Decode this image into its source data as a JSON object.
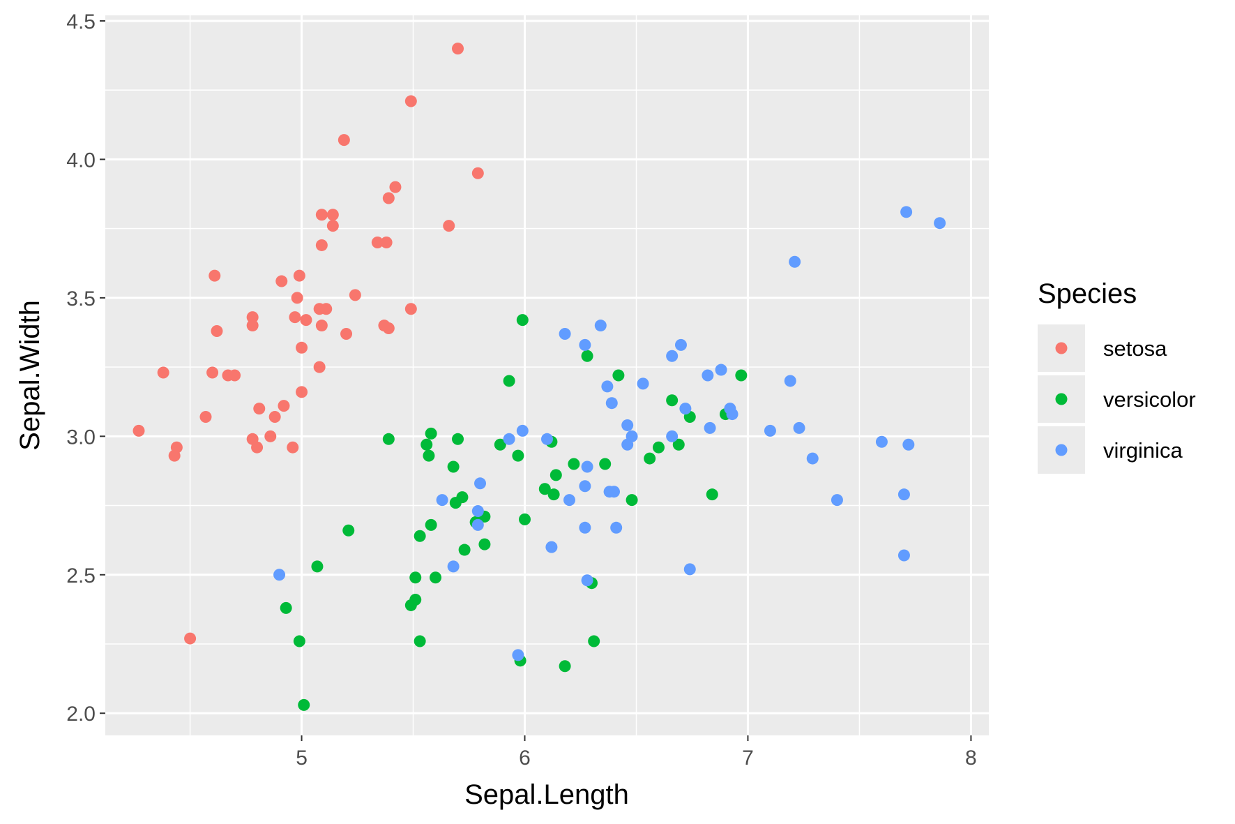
{
  "chart_data": {
    "type": "scatter",
    "title": "",
    "xlabel": "Sepal.Length",
    "ylabel": "Sepal.Width",
    "xlim": [
      4.12,
      8.08
    ],
    "ylim": [
      1.92,
      4.52
    ],
    "x_ticks": [
      5,
      6,
      7,
      8
    ],
    "x_tick_labels": [
      "5",
      "6",
      "7",
      "8"
    ],
    "y_ticks": [
      2.0,
      2.5,
      3.0,
      3.5,
      4.0,
      4.5
    ],
    "y_tick_labels": [
      "2.0",
      "2.5",
      "3.0",
      "3.5",
      "4.0",
      "4.5"
    ],
    "grid": true,
    "legend": {
      "title": "Species",
      "position": "right",
      "entries": [
        "setosa",
        "versicolor",
        "virginica"
      ]
    },
    "colors": {
      "panel_background": "#EBEBEB",
      "grid": "#FFFFFF",
      "setosa": "#F8766D",
      "versicolor": "#00BA38",
      "virginica": "#619CFF"
    },
    "series": [
      {
        "name": "setosa",
        "color": "#F8766D",
        "points": [
          [
            5.7,
            4.4
          ],
          [
            5.49,
            4.21
          ],
          [
            5.19,
            4.07
          ],
          [
            5.79,
            3.95
          ],
          [
            5.42,
            3.9
          ],
          [
            5.39,
            3.86
          ],
          [
            5.09,
            3.8
          ],
          [
            5.14,
            3.8
          ],
          [
            5.14,
            3.76
          ],
          [
            5.66,
            3.76
          ],
          [
            5.09,
            3.69
          ],
          [
            5.34,
            3.7
          ],
          [
            5.38,
            3.7
          ],
          [
            4.61,
            3.58
          ],
          [
            4.91,
            3.56
          ],
          [
            4.99,
            3.58
          ],
          [
            5.24,
            3.51
          ],
          [
            4.98,
            3.5
          ],
          [
            5.08,
            3.46
          ],
          [
            5.11,
            3.46
          ],
          [
            5.49,
            3.46
          ],
          [
            4.78,
            3.43
          ],
          [
            4.97,
            3.43
          ],
          [
            5.02,
            3.42
          ],
          [
            4.78,
            3.4
          ],
          [
            5.09,
            3.4
          ],
          [
            5.37,
            3.4
          ],
          [
            5.39,
            3.39
          ],
          [
            4.62,
            3.38
          ],
          [
            5.2,
            3.37
          ],
          [
            5.0,
            3.32
          ],
          [
            5.08,
            3.25
          ],
          [
            4.38,
            3.23
          ],
          [
            4.6,
            3.23
          ],
          [
            4.67,
            3.22
          ],
          [
            4.7,
            3.22
          ],
          [
            5.0,
            3.16
          ],
          [
            4.81,
            3.1
          ],
          [
            4.92,
            3.11
          ],
          [
            4.57,
            3.07
          ],
          [
            4.88,
            3.07
          ],
          [
            4.27,
            3.02
          ],
          [
            4.86,
            3.0
          ],
          [
            4.78,
            2.99
          ],
          [
            4.44,
            2.96
          ],
          [
            4.8,
            2.96
          ],
          [
            4.96,
            2.96
          ],
          [
            4.43,
            2.93
          ],
          [
            4.5,
            2.27
          ]
        ]
      },
      {
        "name": "versicolor",
        "color": "#00BA38",
        "points": [
          [
            5.99,
            3.42
          ],
          [
            6.28,
            3.29
          ],
          [
            5.93,
            3.2
          ],
          [
            6.42,
            3.22
          ],
          [
            6.97,
            3.22
          ],
          [
            6.66,
            3.13
          ],
          [
            6.74,
            3.07
          ],
          [
            6.9,
            3.08
          ],
          [
            5.58,
            3.01
          ],
          [
            5.56,
            2.97
          ],
          [
            5.7,
            2.99
          ],
          [
            5.39,
            2.99
          ],
          [
            5.89,
            2.97
          ],
          [
            6.12,
            2.98
          ],
          [
            6.6,
            2.96
          ],
          [
            6.69,
            2.97
          ],
          [
            5.57,
            2.93
          ],
          [
            5.97,
            2.93
          ],
          [
            6.56,
            2.92
          ],
          [
            5.68,
            2.89
          ],
          [
            6.22,
            2.9
          ],
          [
            6.36,
            2.9
          ],
          [
            6.14,
            2.86
          ],
          [
            6.09,
            2.81
          ],
          [
            6.13,
            2.79
          ],
          [
            6.48,
            2.77
          ],
          [
            6.84,
            2.79
          ],
          [
            5.72,
            2.78
          ],
          [
            5.69,
            2.76
          ],
          [
            5.82,
            2.71
          ],
          [
            5.78,
            2.69
          ],
          [
            6.0,
            2.7
          ],
          [
            5.58,
            2.68
          ],
          [
            5.21,
            2.66
          ],
          [
            5.53,
            2.64
          ],
          [
            5.73,
            2.59
          ],
          [
            5.82,
            2.61
          ],
          [
            5.07,
            2.53
          ],
          [
            5.51,
            2.49
          ],
          [
            5.6,
            2.49
          ],
          [
            6.3,
            2.47
          ],
          [
            5.51,
            2.41
          ],
          [
            5.49,
            2.39
          ],
          [
            4.93,
            2.38
          ],
          [
            4.99,
            2.26
          ],
          [
            5.53,
            2.26
          ],
          [
            6.31,
            2.26
          ],
          [
            5.98,
            2.19
          ],
          [
            6.18,
            2.17
          ],
          [
            5.01,
            2.03
          ]
        ]
      },
      {
        "name": "virginica",
        "color": "#619CFF",
        "points": [
          [
            7.71,
            3.81
          ],
          [
            7.86,
            3.77
          ],
          [
            7.21,
            3.63
          ],
          [
            6.34,
            3.4
          ],
          [
            6.18,
            3.37
          ],
          [
            6.7,
            3.33
          ],
          [
            6.27,
            3.33
          ],
          [
            6.66,
            3.29
          ],
          [
            6.88,
            3.24
          ],
          [
            6.82,
            3.22
          ],
          [
            7.19,
            3.2
          ],
          [
            6.53,
            3.19
          ],
          [
            6.37,
            3.18
          ],
          [
            6.39,
            3.12
          ],
          [
            6.72,
            3.1
          ],
          [
            6.92,
            3.1
          ],
          [
            6.93,
            3.08
          ],
          [
            6.46,
            3.04
          ],
          [
            7.23,
            3.03
          ],
          [
            6.83,
            3.03
          ],
          [
            5.99,
            3.02
          ],
          [
            7.1,
            3.02
          ],
          [
            6.48,
            3.0
          ],
          [
            6.66,
            3.0
          ],
          [
            6.1,
            2.99
          ],
          [
            5.93,
            2.99
          ],
          [
            7.6,
            2.98
          ],
          [
            7.72,
            2.97
          ],
          [
            6.46,
            2.97
          ],
          [
            7.29,
            2.92
          ],
          [
            6.28,
            2.89
          ],
          [
            5.8,
            2.83
          ],
          [
            6.27,
            2.82
          ],
          [
            6.38,
            2.8
          ],
          [
            6.4,
            2.8
          ],
          [
            7.4,
            2.77
          ],
          [
            7.7,
            2.79
          ],
          [
            6.2,
            2.77
          ],
          [
            5.63,
            2.77
          ],
          [
            5.79,
            2.73
          ],
          [
            5.79,
            2.68
          ],
          [
            6.27,
            2.67
          ],
          [
            6.41,
            2.67
          ],
          [
            6.12,
            2.6
          ],
          [
            7.7,
            2.57
          ],
          [
            5.68,
            2.53
          ],
          [
            6.74,
            2.52
          ],
          [
            4.9,
            2.5
          ],
          [
            6.28,
            2.48
          ],
          [
            5.97,
            2.21
          ]
        ]
      }
    ]
  }
}
